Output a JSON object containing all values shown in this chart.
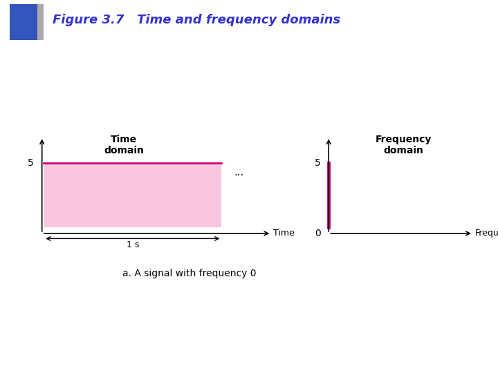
{
  "title": "Figure 3.7   Time and frequency domains",
  "title_color": "#3333cc",
  "title_fontsize": 13,
  "bg_color": "#ffffff",
  "signal_value": 5,
  "time_domain_label": "Time\ndomain",
  "freq_domain_label": "Frequency\ndomain",
  "time_axis_label": "Time",
  "freq_axis_label": "Frequency",
  "caption": "a. A signal with frequency 0",
  "one_sec_label": "1 s",
  "magenta": "#cc0077",
  "pink_fill": "#f9c8e0",
  "zero_label": "0",
  "five_label": "5"
}
